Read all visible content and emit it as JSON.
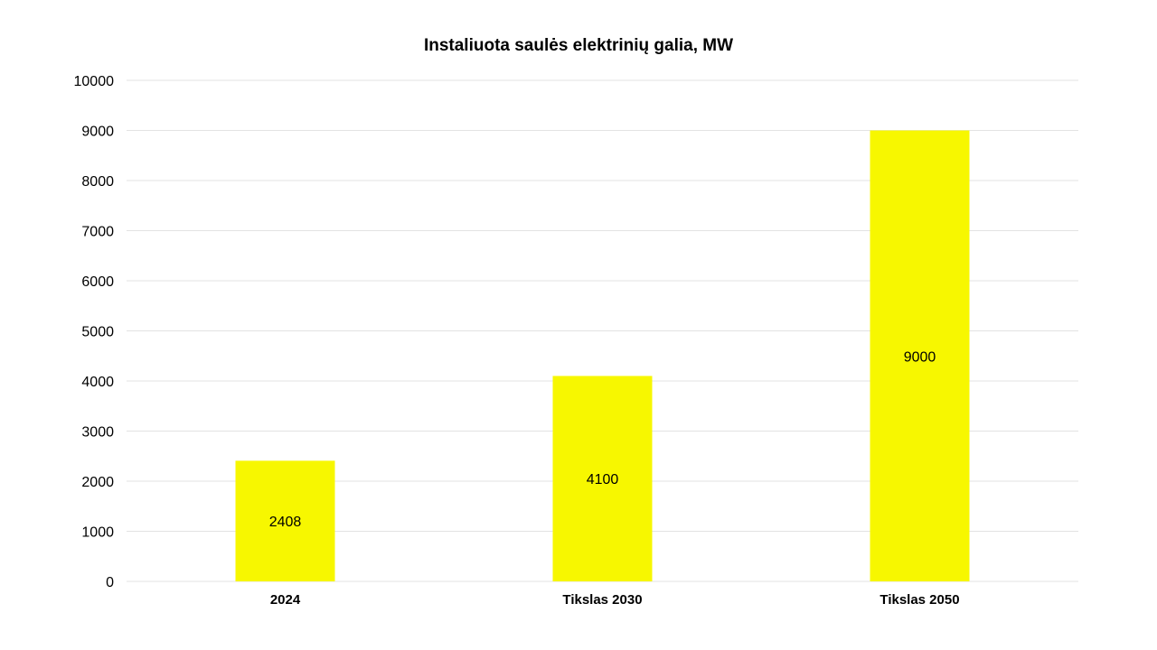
{
  "chart_data": {
    "type": "bar",
    "title": "Instaliuota saulės elektrinių galia, MW",
    "categories": [
      "2024",
      "Tikslas 2030",
      "Tikslas 2050"
    ],
    "values": [
      2408,
      4100,
      9000
    ],
    "data_labels": [
      "2408",
      "4100",
      "9000"
    ],
    "ylim": [
      0,
      10000
    ],
    "yticks": [
      0,
      1000,
      2000,
      3000,
      4000,
      5000,
      6000,
      7000,
      8000,
      9000,
      10000
    ],
    "grid": true,
    "bar_color": "#F7F700",
    "grid_color": "#E3E3E3"
  }
}
